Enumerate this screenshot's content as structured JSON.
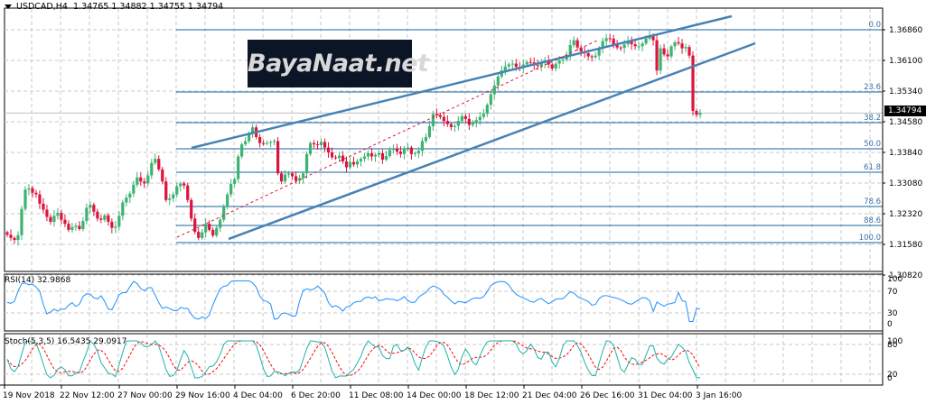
{
  "header": {
    "symbol": "USDCAD,H4",
    "ohlc": "1.34765 1.34882 1.34755 1.34794"
  },
  "watermark": {
    "text": "BayaNaat.net"
  },
  "current_price": "1.34794",
  "rsi_panel": {
    "label": "RSI(14) 32.9868",
    "ticks": [
      "100",
      "70",
      "30",
      "0"
    ]
  },
  "stoch_panel": {
    "label": "Stoch(5,3,5) 16.5435 29.0917",
    "ticks": [
      "100",
      "80",
      "20",
      "0"
    ]
  },
  "colors": {
    "bull": "#3cb371",
    "bear": "#dc143c",
    "fib": "#4682b4",
    "channel": "#4682b4",
    "rsi": "#1e90ff",
    "stoch_main": "#20b2aa",
    "stoch_signal": "#ff0000",
    "grid": "#c8c8c8"
  },
  "chart_data": {
    "type": "candlestick",
    "title": "USDCAD,H4",
    "ylim": [
      1.305,
      1.3725
    ],
    "yticks": [
      "1.36860",
      "1.36100",
      "1.35340",
      "1.34580",
      "1.33840",
      "1.33080",
      "1.32320",
      "1.31580",
      "1.30820"
    ],
    "xticks": [
      "19 Nov 2018",
      "22 Nov 12:00",
      "27 Nov 00:00",
      "29 Nov 16:00",
      "4 Dec 04:00",
      "6 Dec 20:00",
      "11 Dec 08:00",
      "14 Dec 00:00",
      "18 Dec 12:00",
      "21 Dec 04:00",
      "26 Dec 16:00",
      "31 Dec 04:00",
      "3 Jan 16:00"
    ],
    "fibonacci": {
      "levels": [
        "0.0",
        "23.6",
        "38.2",
        "50.0",
        "61.8",
        "78.6",
        "88.6",
        "100.0"
      ],
      "prices": [
        1.3686,
        1.3532,
        1.3456,
        1.339,
        1.3332,
        1.3248,
        1.3202,
        1.3159
      ]
    },
    "channel": {
      "upper": [
        [
          212,
          164
        ],
        [
          810,
          18
        ]
      ],
      "lower": [
        [
          253,
          265
        ],
        [
          836,
          48
        ]
      ]
    },
    "last": {
      "open": 1.34765,
      "high": 1.34882,
      "low": 1.34755,
      "close": 1.34794
    },
    "legend": []
  },
  "closes": [
    1.3178,
    1.317,
    1.3165,
    1.3177,
    1.3242,
    1.329,
    1.3293,
    1.3282,
    1.3278,
    1.3255,
    1.324,
    1.3222,
    1.321,
    1.3225,
    1.3232,
    1.3215,
    1.3205,
    1.319,
    1.3197,
    1.32,
    1.3192,
    1.3212,
    1.3245,
    1.3252,
    1.3235,
    1.3218,
    1.3215,
    1.3226,
    1.321,
    1.3195,
    1.3198,
    1.3225,
    1.3258,
    1.327,
    1.328,
    1.3302,
    1.332,
    1.331,
    1.3305,
    1.3325,
    1.3356,
    1.3366,
    1.334,
    1.331,
    1.3264,
    1.3268,
    1.3278,
    1.3298,
    1.3305,
    1.33,
    1.3264,
    1.3218,
    1.3185,
    1.317,
    1.3184,
    1.3205,
    1.319,
    1.3176,
    1.3195,
    1.3215,
    1.3248,
    1.3278,
    1.3304,
    1.3316,
    1.3372,
    1.3402,
    1.341,
    1.3428,
    1.3444,
    1.342,
    1.3405,
    1.3404,
    1.3406,
    1.3408,
    1.341,
    1.333,
    1.331,
    1.3327,
    1.333,
    1.3323,
    1.3312,
    1.3318,
    1.333,
    1.3378,
    1.3405,
    1.3402,
    1.34,
    1.3408,
    1.3394,
    1.3382,
    1.337,
    1.3368,
    1.3374,
    1.336,
    1.3345,
    1.3358,
    1.3352,
    1.336,
    1.3366,
    1.3372,
    1.338,
    1.3372,
    1.3376,
    1.338,
    1.3364,
    1.3373,
    1.3388,
    1.3392,
    1.3384,
    1.3378,
    1.3392,
    1.3394,
    1.3378,
    1.338,
    1.3386,
    1.341,
    1.342,
    1.3447,
    1.3477,
    1.3474,
    1.347,
    1.346,
    1.3452,
    1.3445,
    1.3448,
    1.346,
    1.3472,
    1.3465,
    1.345,
    1.3456,
    1.3462,
    1.347,
    1.3478,
    1.35,
    1.3526,
    1.3548,
    1.357,
    1.3585,
    1.3595,
    1.36,
    1.3602,
    1.3594,
    1.3592,
    1.36,
    1.3606,
    1.3605,
    1.3598,
    1.3596,
    1.3604,
    1.361,
    1.36,
    1.359,
    1.3602,
    1.361,
    1.3612,
    1.362,
    1.3648,
    1.366,
    1.3642,
    1.3632,
    1.3628,
    1.362,
    1.3618,
    1.3622,
    1.364,
    1.3658,
    1.3665,
    1.3664,
    1.365,
    1.3642,
    1.3641,
    1.365,
    1.3657,
    1.365,
    1.3645,
    1.3645,
    1.3652,
    1.3664,
    1.367,
    1.366,
    1.3585,
    1.364,
    1.3625,
    1.362,
    1.3645,
    1.3655,
    1.3652,
    1.364,
    1.3643,
    1.3622,
    1.3485,
    1.3475,
    1.348
  ]
}
